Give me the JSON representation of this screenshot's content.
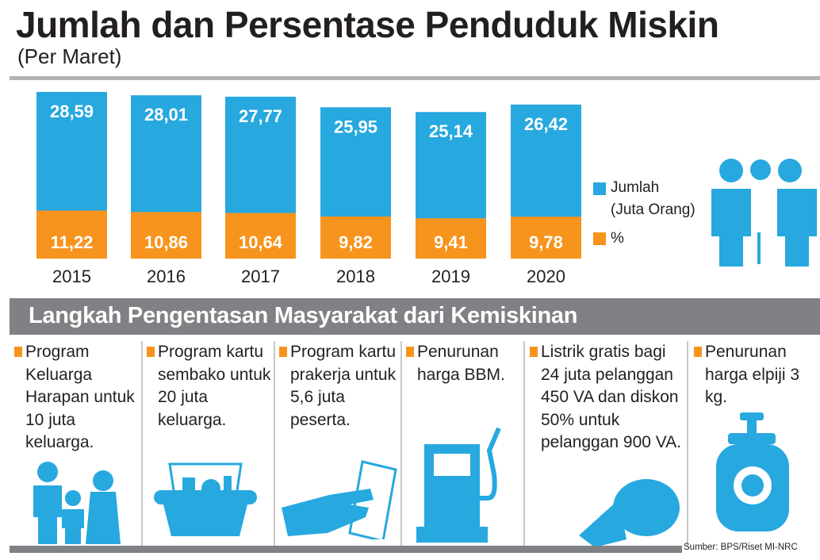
{
  "title": "Jumlah dan Persentase Penduduk Miskin",
  "subtitle": "(Per Maret)",
  "chart_data": {
    "type": "bar",
    "categories": [
      "2015",
      "2016",
      "2017",
      "2018",
      "2019",
      "2020"
    ],
    "series": [
      {
        "name": "Jumlah (Juta Orang)",
        "values": [
          28.59,
          28.01,
          27.77,
          25.95,
          25.14,
          26.42
        ],
        "labels": [
          "28,59",
          "28,01",
          "27,77",
          "25,95",
          "25,14",
          "26,42"
        ],
        "color": "#27a8df"
      },
      {
        "name": "%",
        "values": [
          11.22,
          10.86,
          10.64,
          9.82,
          9.41,
          9.78
        ],
        "labels": [
          "11,22",
          "10,86",
          "10,64",
          "9,82",
          "9,41",
          "9,78"
        ],
        "color": "#f7941d"
      }
    ]
  },
  "legend": {
    "jumlah": "Jumlah",
    "jumlah_unit": "(Juta Orang)",
    "persen": "%"
  },
  "section_title": "Langkah Pengentasan Masyarakat dari Kemiskinan",
  "programs": [
    {
      "text": "Program Keluarga Harapan untuk 10 juta keluarga.",
      "icon": "family-icon"
    },
    {
      "text": "Program kartu sembako untuk 20 juta keluarga.",
      "icon": "grocery-basket-icon"
    },
    {
      "text": "Program kartu prakerja untuk 5,6 juta peserta.",
      "icon": "hand-card-icon"
    },
    {
      "text": "Penurunan harga BBM.",
      "icon": "fuel-pump-icon"
    },
    {
      "text": "Listrik gratis bagi 24 juta pelanggan 450 VA dan diskon 50% untuk pelanggan 900 VA.",
      "icon": "light-bulb-icon"
    },
    {
      "text": "Penurunan harga elpiji 3 kg.",
      "icon": "gas-cylinder-icon"
    }
  ],
  "source": "Sumber: BPS/Riset MI-NRC",
  "colors": {
    "blue": "#27a8df",
    "orange": "#f7941d",
    "gray": "#808184"
  }
}
